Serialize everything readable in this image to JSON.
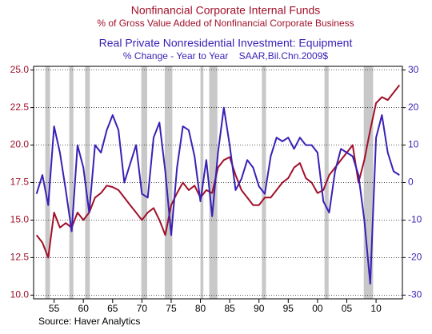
{
  "chart_data": {
    "type": "line",
    "source": "Source: Haver Analytics",
    "grid": true,
    "x": [
      1952,
      1953,
      1954,
      1955,
      1956,
      1957,
      1958,
      1959,
      1960,
      1961,
      1962,
      1963,
      1964,
      1965,
      1966,
      1967,
      1968,
      1969,
      1970,
      1971,
      1972,
      1973,
      1974,
      1975,
      1976,
      1977,
      1978,
      1979,
      1980,
      1981,
      1982,
      1983,
      1984,
      1985,
      1986,
      1987,
      1988,
      1989,
      1990,
      1991,
      1992,
      1993,
      1994,
      1995,
      1996,
      1997,
      1998,
      1999,
      2000,
      2001,
      2002,
      2003,
      2004,
      2005,
      2006,
      2007,
      2008,
      2009,
      2010,
      2011,
      2012,
      2013,
      2014
    ],
    "xlim": [
      1951.5,
      2014.5
    ],
    "xticks": [
      {
        "value": 1955,
        "label": "55"
      },
      {
        "value": 1960,
        "label": "60"
      },
      {
        "value": 1965,
        "label": "65"
      },
      {
        "value": 1970,
        "label": "70"
      },
      {
        "value": 1975,
        "label": "75"
      },
      {
        "value": 1980,
        "label": "80"
      },
      {
        "value": 1985,
        "label": "85"
      },
      {
        "value": 1990,
        "label": "90"
      },
      {
        "value": 1995,
        "label": "95"
      },
      {
        "value": 2000,
        "label": "00"
      },
      {
        "value": 2005,
        "label": "05"
      },
      {
        "value": 2010,
        "label": "10"
      }
    ],
    "ylim": [
      9.75,
      25.25
    ],
    "yticks": [
      {
        "value": 10,
        "label": "10.0"
      },
      12.5,
      {
        "value": 15,
        "label": "15.0"
      },
      17.5,
      {
        "value": 20,
        "label": "20.0"
      },
      22.5,
      {
        "value": 25,
        "label": "25.0"
      }
    ],
    "y2lim": [
      -31,
      31
    ],
    "y2ticks": [
      -30,
      -20,
      -10,
      0,
      10,
      20,
      30
    ],
    "recessions": [
      [
        1953.5,
        1954.3
      ],
      [
        1957.6,
        1958.3
      ],
      [
        1960.3,
        1961.1
      ],
      [
        1969.9,
        1970.9
      ],
      [
        1973.9,
        1975.2
      ],
      [
        1980.0,
        1980.5
      ],
      [
        1981.5,
        1982.9
      ],
      [
        1990.5,
        1991.2
      ],
      [
        2001.2,
        2001.9
      ],
      [
        2007.9,
        2009.5
      ]
    ],
    "recession_color": "#c8c8c8",
    "series": [
      {
        "name": "Nonfinancial Corporate Internal Funds",
        "subtitle": "% of Gross Value Added of Nonfinancial Corporate Business",
        "color": "#a0102a",
        "axis": "y",
        "values": [
          14.0,
          13.5,
          12.5,
          15.5,
          14.5,
          14.8,
          14.5,
          15.5,
          15.0,
          15.5,
          16.5,
          16.8,
          17.3,
          17.2,
          17.0,
          16.5,
          16.0,
          15.5,
          15.0,
          15.5,
          15.8,
          15.0,
          14.0,
          16.0,
          16.8,
          17.5,
          17.0,
          17.3,
          16.5,
          17.0,
          16.8,
          18.5,
          19.0,
          19.2,
          18.0,
          17.0,
          16.5,
          16.0,
          16.0,
          16.5,
          16.5,
          17.0,
          17.5,
          17.8,
          18.5,
          18.8,
          17.8,
          17.5,
          16.8,
          17.0,
          18.0,
          18.5,
          19.0,
          19.5,
          20.0,
          17.5,
          19.0,
          21.0,
          22.8,
          23.2,
          23.0,
          23.5,
          24.0
        ]
      },
      {
        "name": "Real Private Nonresidential Investment: Equipment",
        "subtitle": "% Change - Year to Year    SAAR,Bil.Chn.2009$",
        "color": "#3a1fb5",
        "axis": "y2",
        "values": [
          -3,
          2,
          -6,
          15,
          8,
          -2,
          -13,
          10,
          4,
          -8,
          10,
          8,
          14,
          18,
          14,
          0,
          5,
          10,
          -3,
          -4,
          12,
          16,
          3,
          -14,
          4,
          15,
          14,
          7,
          -5,
          6,
          -9,
          8,
          20,
          10,
          -2,
          1,
          6,
          4,
          -1,
          -3,
          7,
          12,
          11,
          12,
          9,
          12,
          10,
          10,
          8,
          -5,
          -8,
          3,
          9,
          8,
          7,
          2,
          -10,
          -27,
          12,
          18,
          8,
          3,
          2
        ]
      }
    ]
  }
}
